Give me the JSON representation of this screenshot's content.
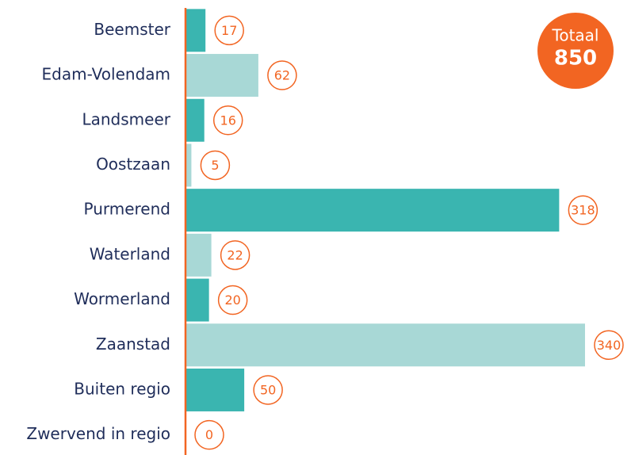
{
  "chart_data": {
    "type": "hbar",
    "categories": [
      "Beemster",
      "Edam-Volendam",
      "Landsmeer",
      "Oostzaan",
      "Purmerend",
      "Waterland",
      "Wormerland",
      "Zaanstad",
      "Buiten regio",
      "Zwervend in regio"
    ],
    "values": [
      17,
      62,
      16,
      5,
      318,
      22,
      20,
      340,
      50,
      0
    ],
    "colors": [
      "#3ab5b0",
      "#a8d8d6",
      "#3ab5b0",
      "#a8d8d6",
      "#3ab5b0",
      "#a8d8d6",
      "#3ab5b0",
      "#a8d8d6",
      "#3ab5b0",
      "#a8d8d6"
    ],
    "total_label": "Totaal",
    "total": 850,
    "accent_color": "#f26522"
  }
}
